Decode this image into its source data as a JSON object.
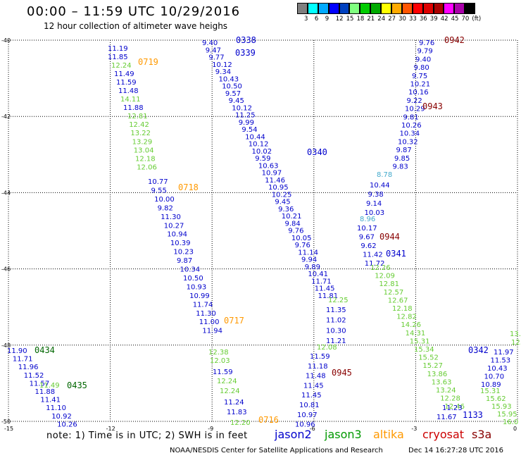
{
  "title": "00:00 – 11:59 UTC 10/29/2016",
  "subtitle": "12 hour collection of altimeter wave heighs",
  "legend": {
    "unit": "(ft)",
    "colors": [
      "#7f7f7f",
      "#00ffff",
      "#00aaff",
      "#0000ff",
      "#0040c0",
      "#80ff80",
      "#00cc00",
      "#00aa00",
      "#ffff00",
      "#ffaa00",
      "#ff5500",
      "#ff0000",
      "#dd0000",
      "#aa0000",
      "#ff00ff",
      "#aa00aa",
      "#000000"
    ],
    "labels": [
      "3",
      "6",
      "9",
      "12",
      "15",
      "18",
      "21",
      "24",
      "27",
      "30",
      "33",
      "36",
      "39",
      "42",
      "45",
      "70"
    ]
  },
  "axes": {
    "lat_labels": [
      {
        "text": "-40",
        "lat": -40
      },
      {
        "text": "-42",
        "lat": -42
      },
      {
        "text": "-44",
        "lat": -44
      },
      {
        "text": "-46",
        "lat": -46
      },
      {
        "text": "-48",
        "lat": -48
      },
      {
        "text": "-50",
        "lat": -50
      }
    ],
    "lon_labels": [
      {
        "text": "-15",
        "lon": -15
      },
      {
        "text": "-12",
        "lon": -12
      },
      {
        "text": "-9",
        "lon": -9
      },
      {
        "text": "-6",
        "lon": -6
      },
      {
        "text": "-3",
        "lon": -3
      },
      {
        "text": "0",
        "lon": 0
      }
    ]
  },
  "passes": [
    {
      "color": "#0000cc",
      "values": [
        "11.19",
        "11.85"
      ],
      "start": [
        153,
        63
      ],
      "step": [
        0,
        12
      ]
    },
    {
      "color": "#66cc33",
      "values": [
        "12.24"
      ],
      "start": [
        158,
        87
      ],
      "step": [
        0,
        12
      ]
    },
    {
      "color": "#0000cc",
      "values": [
        "11.49",
        "11.59",
        "11.48"
      ],
      "start": [
        162,
        99
      ],
      "step": [
        3,
        12
      ]
    },
    {
      "color": "#66cc33",
      "values": [
        "14.11"
      ],
      "start": [
        171,
        135
      ],
      "step": [
        0,
        12
      ]
    },
    {
      "color": "#0000cc",
      "values": [
        "11.88"
      ],
      "start": [
        175,
        147
      ],
      "step": [
        0,
        12
      ]
    },
    {
      "color": "#66cc33",
      "values": [
        "12.81",
        "12.42",
        "13.22",
        "13.29",
        "13.04",
        "12.18",
        "12.06"
      ],
      "start": [
        181,
        159
      ],
      "step": [
        2.2,
        12.1
      ]
    },
    {
      "color": "#0000cc",
      "values": [
        "10.77",
        "9.55",
        "10.00",
        "9.82",
        "11.30",
        "10.27",
        "10.94",
        "10.39",
        "10.23",
        "9.87",
        "10.34",
        "10.50",
        "10.93",
        "10.99",
        "11.74",
        "11.30",
        "11.00",
        "11.94"
      ],
      "start": [
        210,
        252
      ],
      "step": [
        4.55,
        12.45
      ]
    },
    {
      "color": "#66cc33",
      "values": [
        "12.38",
        "12.03"
      ],
      "start": [
        296,
        494
      ],
      "step": [
        2,
        12
      ]
    },
    {
      "color": "#0000cc",
      "values": [
        "11.59"
      ],
      "start": [
        302,
        522
      ],
      "step": [
        0,
        12
      ]
    },
    {
      "color": "#66cc33",
      "values": [
        "12.24",
        "12.24"
      ],
      "start": [
        308,
        535
      ],
      "step": [
        4,
        14
      ]
    },
    {
      "color": "#0000cc",
      "values": [
        "11.24",
        "11.83"
      ],
      "start": [
        318,
        565
      ],
      "step": [
        4,
        14
      ]
    },
    {
      "color": "#66cc33",
      "values": [
        "12.20"
      ],
      "start": [
        327,
        594
      ],
      "step": [
        0,
        12
      ]
    },
    {
      "color": "#0000cc",
      "values": [
        "9.40",
        "9.47",
        "9.77",
        "10.12",
        "9.34",
        "10.43",
        "10.50",
        "9.57",
        "9.45",
        "10.12",
        "11.25",
        "9.99",
        "9.54",
        "10.44",
        "10.12",
        "10.02",
        "9.59",
        "10.63",
        "10.97",
        "11.46",
        "10.95",
        "10.25",
        "9.45",
        "9.36",
        "10.21",
        "9.84",
        "9.76",
        "10.05",
        "9.76",
        "11.14",
        "9.94",
        "9.89",
        "10.41",
        "11.71",
        "11.45",
        "11.81"
      ],
      "start": [
        287,
        55
      ],
      "step": [
        4.7,
        10.25
      ]
    },
    {
      "color": "#66cc33",
      "values": [
        "12.25"
      ],
      "start": [
        466,
        420
      ],
      "step": [
        0,
        12
      ]
    },
    {
      "color": "#0000cc",
      "values": [
        "11.35",
        "11.02",
        "10.30",
        "11.21"
      ],
      "start": [
        463,
        434
      ],
      "step": [
        0,
        14.7
      ]
    },
    {
      "color": "#66cc33",
      "values": [
        "12.08"
      ],
      "start": [
        450,
        487
      ],
      "step": [
        0,
        12
      ]
    },
    {
      "color": "#0000cc",
      "values": [
        "11.59",
        "11.18",
        "11.48",
        "11.45",
        "11.45",
        "10.81",
        "10.97",
        "10.96"
      ],
      "start": [
        440,
        500
      ],
      "step": [
        -3,
        13.8
      ]
    },
    {
      "color": "#0000cc",
      "values": [
        "9.76",
        "9.79",
        "9.40",
        "9.80",
        "9.75",
        "10.21",
        "10.16",
        "9.22",
        "10.29",
        "9.81",
        "10.26",
        "10.34",
        "10.32",
        "9.87",
        "9.85",
        "9.83"
      ],
      "start": [
        595,
        55
      ],
      "step": [
        -2.5,
        11.7
      ]
    },
    {
      "color": "#44aacc",
      "values": [
        "8.78"
      ],
      "start": [
        535,
        242
      ],
      "step": [
        0,
        12
      ]
    },
    {
      "color": "#0000cc",
      "values": [
        "10.44",
        "9.38",
        "9.14",
        "10.03"
      ],
      "start": [
        525,
        257
      ],
      "step": [
        -2.5,
        13
      ]
    },
    {
      "color": "#44aacc",
      "values": [
        "8.96"
      ],
      "start": [
        511,
        305
      ],
      "step": [
        0,
        12
      ]
    },
    {
      "color": "#0000cc",
      "values": [
        "10.17",
        "9.67",
        "9.62",
        "11.42",
        "11.72"
      ],
      "start": [
        507,
        318
      ],
      "step": [
        2.7,
        12.5
      ]
    },
    {
      "color": "#66cc33",
      "values": [
        "12.26",
        "12.09",
        "12.81",
        "12.57",
        "12.67",
        "12.18",
        "12.82",
        "14.26",
        "14.31",
        "15.31",
        "15.34",
        "15.52",
        "15.27",
        "13.86",
        "13.63",
        "13.24",
        "12.28",
        "12.46"
      ],
      "start": [
        526,
        374
      ],
      "step": [
        6.2,
        11.6
      ]
    },
    {
      "color": "#0000cc",
      "values": [
        "11.23",
        "11.67"
      ],
      "start": [
        628,
        573
      ],
      "step": [
        -8,
        13
      ]
    },
    {
      "color": "#0000cc",
      "values": [
        "11.97",
        "11.53",
        "10.43",
        "10.70",
        "10.89"
      ],
      "start": [
        701,
        494
      ],
      "step": [
        -4.5,
        11.5
      ]
    },
    {
      "color": "#66cc33",
      "values": [
        "15.31",
        "15.62",
        "15.93",
        "15.95",
        "16.0"
      ],
      "start": [
        682,
        549
      ],
      "step": [
        8,
        11
      ]
    },
    {
      "color": "#66cc33",
      "values": [
        "13.",
        "12."
      ],
      "start": [
        724,
        468
      ],
      "step": [
        2,
        12
      ]
    },
    {
      "color": "#0000cc",
      "values": [
        "11.90",
        "11.71",
        "11.96",
        "11.52",
        "11.57",
        "11.88",
        "11.41",
        "11.10",
        "10.92",
        "10.26"
      ],
      "start": [
        10,
        492
      ],
      "step": [
        7.9,
        11.6
      ]
    },
    {
      "color": "#66cc33",
      "values": [
        "11.49"
      ],
      "start": [
        56,
        541
      ],
      "step": [
        0,
        12
      ]
    }
  ],
  "time_tags": [
    {
      "text": "0338",
      "color": "#0000cc",
      "pos": [
        335,
        50
      ]
    },
    {
      "text": "0339",
      "color": "#0000cc",
      "pos": [
        334,
        68
      ]
    },
    {
      "text": "0340",
      "color": "#0000cc",
      "pos": [
        436,
        209
      ]
    },
    {
      "text": "0341",
      "color": "#0000cc",
      "pos": [
        548,
        353
      ]
    },
    {
      "text": "0342",
      "color": "#0000cc",
      "pos": [
        665,
        490
      ]
    },
    {
      "text": "1133",
      "color": "#0000cc",
      "pos": [
        657,
        582
      ]
    },
    {
      "text": "0719",
      "color": "#ff9900",
      "pos": [
        196,
        81
      ]
    },
    {
      "text": "0718",
      "color": "#ff9900",
      "pos": [
        253,
        259
      ]
    },
    {
      "text": "0717",
      "color": "#ff9900",
      "pos": [
        318,
        448
      ]
    },
    {
      "text": "0716",
      "color": "#ff9900",
      "pos": [
        367,
        589
      ]
    },
    {
      "text": "0942",
      "color": "#880000",
      "pos": [
        631,
        50
      ]
    },
    {
      "text": "0943",
      "color": "#880000",
      "pos": [
        600,
        144
      ]
    },
    {
      "text": "0944",
      "color": "#880000",
      "pos": [
        539,
        329
      ]
    },
    {
      "text": "0945",
      "color": "#880000",
      "pos": [
        471,
        522
      ]
    },
    {
      "text": "0434",
      "color": "#006600",
      "pos": [
        49,
        490
      ]
    },
    {
      "text": "0435",
      "color": "#006600",
      "pos": [
        95,
        540
      ]
    }
  ],
  "note": "note: 1) Time is in UTC; 2) SWH is in feet",
  "satellites": [
    {
      "name": "jason2",
      "color": "#0000cc"
    },
    {
      "name": "jason3",
      "color": "#009900"
    },
    {
      "name": "altika",
      "color": "#ff9900"
    },
    {
      "name": "cryosat",
      "color": "#cc0000"
    },
    {
      "name": "s3a",
      "color": "#880000"
    }
  ],
  "footer_left": "NOAA/NESDIS Center for Satellite Applications and Research",
  "footer_right": "Dec 14 16:27:28 UTC 2016"
}
